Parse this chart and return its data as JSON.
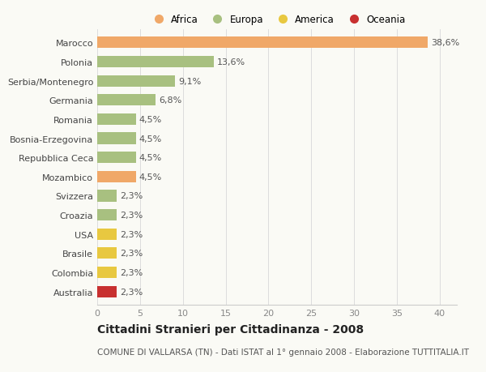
{
  "categories": [
    "Marocco",
    "Polonia",
    "Serbia/Montenegro",
    "Germania",
    "Romania",
    "Bosnia-Erzegovina",
    "Repubblica Ceca",
    "Mozambico",
    "Svizzera",
    "Croazia",
    "USA",
    "Brasile",
    "Colombia",
    "Australia"
  ],
  "values": [
    38.6,
    13.6,
    9.1,
    6.8,
    4.5,
    4.5,
    4.5,
    4.5,
    2.3,
    2.3,
    2.3,
    2.3,
    2.3,
    2.3
  ],
  "labels": [
    "38,6%",
    "13,6%",
    "9,1%",
    "6,8%",
    "4,5%",
    "4,5%",
    "4,5%",
    "4,5%",
    "2,3%",
    "2,3%",
    "2,3%",
    "2,3%",
    "2,3%",
    "2,3%"
  ],
  "colors": [
    "#f0a868",
    "#a8c080",
    "#a8c080",
    "#a8c080",
    "#a8c080",
    "#a8c080",
    "#a8c080",
    "#f0a868",
    "#a8c080",
    "#a8c080",
    "#e8c840",
    "#e8c840",
    "#e8c840",
    "#c83030"
  ],
  "legend_labels": [
    "Africa",
    "Europa",
    "America",
    "Oceania"
  ],
  "legend_colors": [
    "#f0a868",
    "#a8c080",
    "#e8c840",
    "#c83030"
  ],
  "xlim": [
    0,
    42
  ],
  "xticks": [
    0,
    5,
    10,
    15,
    20,
    25,
    30,
    35,
    40
  ],
  "title": "Cittadini Stranieri per Cittadinanza - 2008",
  "subtitle": "COMUNE DI VALLARSA (TN) - Dati ISTAT al 1° gennaio 2008 - Elaborazione TUTTITALIA.IT",
  "background_color": "#fafaf5",
  "bar_height": 0.6,
  "label_fontsize": 8,
  "tick_fontsize": 8,
  "title_fontsize": 10,
  "subtitle_fontsize": 7.5
}
